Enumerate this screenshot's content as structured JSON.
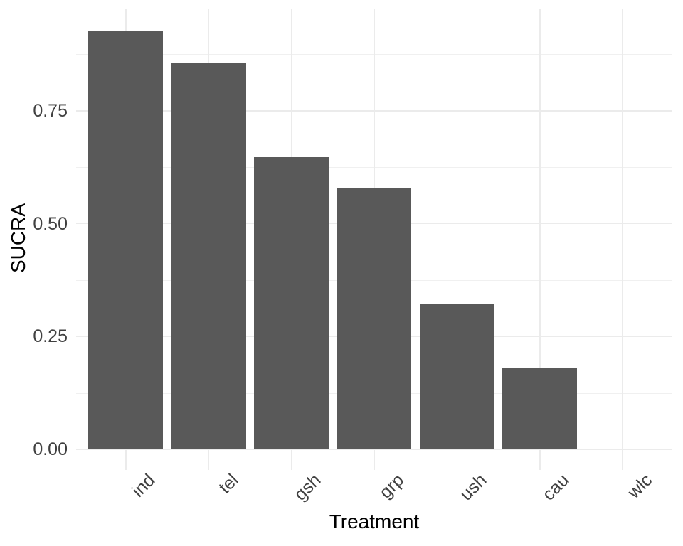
{
  "chart_data": {
    "type": "bar",
    "title": "",
    "categories": [
      "ind",
      "tel",
      "gsh",
      "grp",
      "ush",
      "cau",
      "wlc"
    ],
    "values": [
      0.926,
      0.857,
      0.647,
      0.579,
      0.323,
      0.181,
      0.002
    ],
    "xlabel": "Treatment",
    "ylabel": "SUCRA",
    "ylim": [
      0,
      1
    ],
    "yticks": [
      0,
      0.25,
      0.5,
      0.75
    ],
    "ytick_labels": [
      "0.00",
      "0.25",
      "0.50",
      "0.75"
    ],
    "minor_yticks": [
      0.125,
      0.375,
      0.625,
      0.875
    ],
    "legend": "none",
    "grid": "major+minor, light grey on white (ggplot theme_minimal)",
    "x_tick_angle": 45,
    "colors": {
      "bar_fill": "#595959",
      "grid_major": "#EBEBEB",
      "grid_minor": "#F0F0F0",
      "axis_text": "#404040",
      "axis_title": "#000000",
      "background": "#FFFFFF"
    }
  }
}
